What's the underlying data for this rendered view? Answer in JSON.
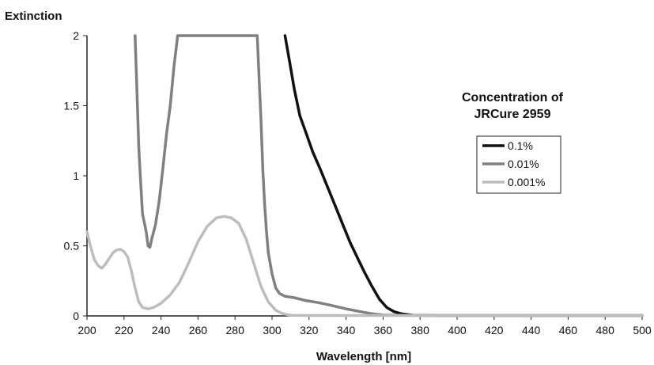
{
  "chart_data": {
    "type": "line",
    "title": "",
    "xlabel": "Wavelength [nm]",
    "ylabel": "Extinction",
    "xlim": [
      200,
      500
    ],
    "ylim": [
      0,
      2
    ],
    "x_ticks": [
      200,
      220,
      240,
      260,
      280,
      300,
      320,
      340,
      360,
      380,
      400,
      420,
      440,
      460,
      480,
      500
    ],
    "y_ticks": [
      0,
      0.5,
      1,
      1.5,
      2
    ],
    "y_tick_labels": [
      "0",
      "0.5",
      "1",
      "1.5",
      "2"
    ],
    "grid": false,
    "legend": {
      "title_lines": [
        "Concentration of",
        "JRCure 2959"
      ],
      "placement": "right"
    },
    "series": [
      {
        "name": "0.1%",
        "color": "#111111",
        "points": [
          [
            307,
            2.0
          ],
          [
            309,
            1.85
          ],
          [
            312,
            1.62
          ],
          [
            315,
            1.43
          ],
          [
            318,
            1.32
          ],
          [
            322,
            1.17
          ],
          [
            326,
            1.05
          ],
          [
            330,
            0.92
          ],
          [
            334,
            0.79
          ],
          [
            338,
            0.66
          ],
          [
            342,
            0.53
          ],
          [
            346,
            0.42
          ],
          [
            350,
            0.31
          ],
          [
            354,
            0.21
          ],
          [
            358,
            0.12
          ],
          [
            362,
            0.06
          ],
          [
            366,
            0.03
          ],
          [
            370,
            0.015
          ],
          [
            376,
            0.005
          ],
          [
            390,
            0.003
          ],
          [
            500,
            0.003
          ]
        ]
      },
      {
        "name": "0.01%",
        "color": "#808080",
        "points": [
          [
            226,
            2.0
          ],
          [
            227,
            1.6
          ],
          [
            228,
            1.2
          ],
          [
            229,
            0.95
          ],
          [
            230,
            0.73
          ],
          [
            232,
            0.6
          ],
          [
            233,
            0.5
          ],
          [
            234,
            0.49
          ],
          [
            235,
            0.55
          ],
          [
            237,
            0.65
          ],
          [
            239,
            0.82
          ],
          [
            241,
            1.05
          ],
          [
            243,
            1.3
          ],
          [
            245,
            1.5
          ],
          [
            247,
            1.78
          ],
          [
            249,
            2.0
          ],
          [
            292,
            2.0
          ],
          [
            293,
            1.7
          ],
          [
            294,
            1.4
          ],
          [
            295,
            1.05
          ],
          [
            296,
            0.8
          ],
          [
            297,
            0.6
          ],
          [
            298,
            0.45
          ],
          [
            300,
            0.3
          ],
          [
            302,
            0.2
          ],
          [
            304,
            0.16
          ],
          [
            307,
            0.14
          ],
          [
            312,
            0.13
          ],
          [
            318,
            0.11
          ],
          [
            325,
            0.095
          ],
          [
            332,
            0.075
          ],
          [
            340,
            0.05
          ],
          [
            348,
            0.03
          ],
          [
            354,
            0.015
          ],
          [
            360,
            0.006
          ],
          [
            380,
            0.003
          ],
          [
            500,
            0.003
          ]
        ]
      },
      {
        "name": "0.001%",
        "color": "#bdbdbd",
        "points": [
          [
            200,
            0.6
          ],
          [
            202,
            0.49
          ],
          [
            204,
            0.4
          ],
          [
            206,
            0.36
          ],
          [
            208,
            0.34
          ],
          [
            210,
            0.37
          ],
          [
            212,
            0.41
          ],
          [
            214,
            0.45
          ],
          [
            216,
            0.47
          ],
          [
            218,
            0.475
          ],
          [
            220,
            0.46
          ],
          [
            222,
            0.42
          ],
          [
            224,
            0.32
          ],
          [
            226,
            0.2
          ],
          [
            228,
            0.1
          ],
          [
            230,
            0.06
          ],
          [
            233,
            0.05
          ],
          [
            236,
            0.06
          ],
          [
            240,
            0.09
          ],
          [
            245,
            0.15
          ],
          [
            250,
            0.24
          ],
          [
            255,
            0.38
          ],
          [
            260,
            0.53
          ],
          [
            265,
            0.64
          ],
          [
            270,
            0.7
          ],
          [
            274,
            0.71
          ],
          [
            278,
            0.7
          ],
          [
            282,
            0.66
          ],
          [
            286,
            0.55
          ],
          [
            290,
            0.38
          ],
          [
            294,
            0.21
          ],
          [
            298,
            0.1
          ],
          [
            302,
            0.04
          ],
          [
            306,
            0.015
          ],
          [
            310,
            0.005
          ],
          [
            320,
            0.003
          ],
          [
            500,
            0.003
          ]
        ]
      }
    ]
  }
}
